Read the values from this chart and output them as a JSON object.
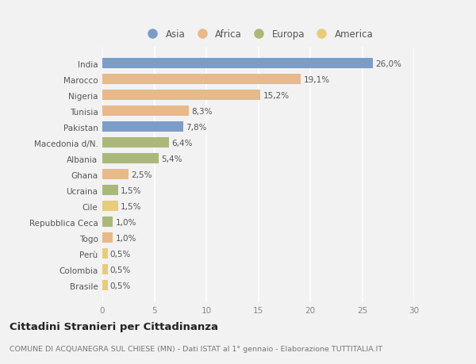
{
  "countries": [
    "India",
    "Marocco",
    "Nigeria",
    "Tunisia",
    "Pakistan",
    "Macedonia d/N.",
    "Albania",
    "Ghana",
    "Ucraina",
    "Cile",
    "Repubblica Ceca",
    "Togo",
    "Perù",
    "Colombia",
    "Brasile"
  ],
  "values": [
    26.0,
    19.1,
    15.2,
    8.3,
    7.8,
    6.4,
    5.4,
    2.5,
    1.5,
    1.5,
    1.0,
    1.0,
    0.5,
    0.5,
    0.5
  ],
  "labels": [
    "26,0%",
    "19,1%",
    "15,2%",
    "8,3%",
    "7,8%",
    "6,4%",
    "5,4%",
    "2,5%",
    "1,5%",
    "1,5%",
    "1,0%",
    "1,0%",
    "0,5%",
    "0,5%",
    "0,5%"
  ],
  "continents": [
    "Asia",
    "Africa",
    "Africa",
    "Africa",
    "Asia",
    "Europa",
    "Europa",
    "Africa",
    "Europa",
    "America",
    "Europa",
    "Africa",
    "America",
    "America",
    "America"
  ],
  "colors": {
    "Asia": "#7b9dc7",
    "Africa": "#e8b98a",
    "Europa": "#aab87a",
    "America": "#e8cc7a"
  },
  "legend_order": [
    "Asia",
    "Africa",
    "Europa",
    "America"
  ],
  "title": "Cittadini Stranieri per Cittadinanza",
  "subtitle": "COMUNE DI ACQUANEGRA SUL CHIESE (MN) - Dati ISTAT al 1° gennaio - Elaborazione TUTTITALIA.IT",
  "xlim": [
    0,
    30
  ],
  "xticks": [
    0,
    5,
    10,
    15,
    20,
    25,
    30
  ],
  "background_color": "#f2f2f2",
  "plot_bg_color": "#f2f2f2",
  "grid_color": "#ffffff",
  "bar_height": 0.65,
  "label_fontsize": 7.5,
  "tick_fontsize": 7.5,
  "title_fontsize": 9.5,
  "subtitle_fontsize": 6.8
}
